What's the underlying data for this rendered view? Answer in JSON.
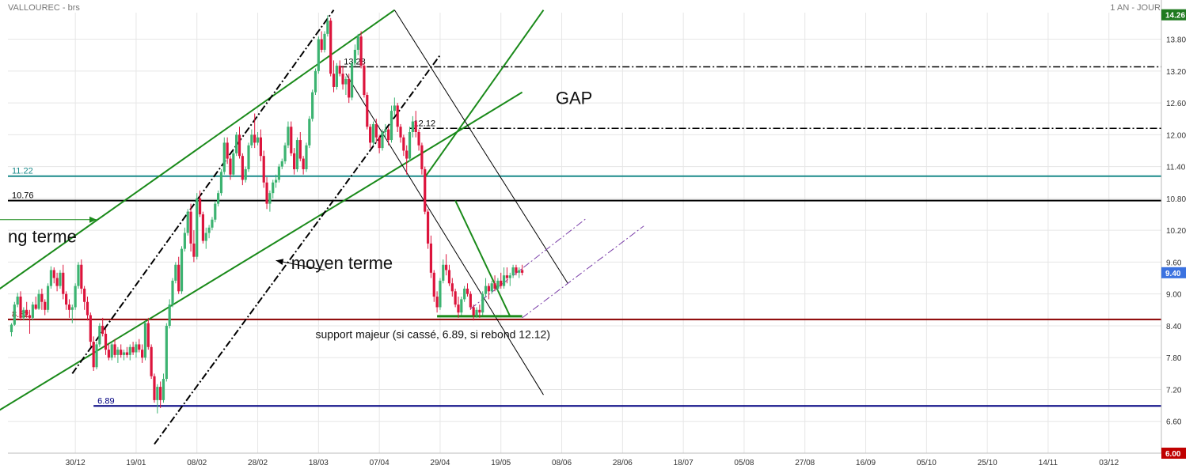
{
  "header": {
    "title": "VALLOUREC - brs",
    "period": "1 AN - JOUR"
  },
  "chart_data": {
    "type": "candlestick",
    "x_tick_labels": [
      "30/12",
      "19/01",
      "08/02",
      "28/02",
      "18/03",
      "07/04",
      "29/04",
      "19/05",
      "08/06",
      "28/06",
      "18/07",
      "05/08",
      "27/08",
      "16/09",
      "05/10",
      "25/10",
      "14/11",
      "03/12"
    ],
    "y_ticks": [
      6.6,
      7.2,
      7.8,
      8.4,
      9.0,
      9.6,
      10.2,
      10.8,
      11.4,
      12.0,
      12.6,
      13.2,
      13.8
    ],
    "y_tick_labels": [
      "6.60",
      "7.20",
      "7.80",
      "8.40",
      "9.00",
      "9.60",
      "10.20",
      "10.80",
      "11.40",
      "12.00",
      "12.60",
      "13.20",
      "13.80"
    ],
    "ylim": [
      6.0,
      14.3
    ],
    "last_price": {
      "value": 9.4,
      "label": "9.40",
      "color": "#3b72e0"
    },
    "axis_badges": [
      {
        "value": 6.0,
        "label": "6.00",
        "color": "#c00000"
      },
      {
        "value": 14.26,
        "label": "14.26",
        "color": "#1f7a1f"
      }
    ],
    "colors": {
      "up": "#3cb371",
      "down": "#dc143c",
      "trend": "#1a8a1a",
      "grid": "#e6e6e6"
    },
    "horizontal_levels": [
      {
        "value": 11.22,
        "label": "11.22",
        "color": "#1a8a8a",
        "style": "solid",
        "start_day": -10
      },
      {
        "value": 10.76,
        "label": "10.76",
        "color": "#000000",
        "style": "solid",
        "start_day": -10
      },
      {
        "value": 8.52,
        "label": "8.52",
        "color": "#8b0000",
        "style": "solid",
        "start_day": -10
      },
      {
        "value": 6.89,
        "label": "6.89",
        "color": "#000080",
        "style": "solid",
        "start_day": 27
      },
      {
        "value": 13.28,
        "label": "13.28",
        "color": "#000000",
        "style": "dashdot",
        "start_day": 108
      },
      {
        "value": 12.12,
        "label": "12.12",
        "color": "#000000",
        "style": "dashdot",
        "start_day": 131
      }
    ],
    "trend_lines": [
      {
        "from": [
          -10,
          8.85
        ],
        "to": [
          126,
          14.35
        ],
        "color": "#1a8a1a",
        "style": "solid",
        "width": 2
      },
      {
        "from": [
          -10,
          6.6
        ],
        "to": [
          168,
          12.8
        ],
        "color": "#1a8a1a",
        "style": "solid",
        "width": 2
      },
      {
        "from": [
          136,
          11.2
        ],
        "to": [
          175,
          14.35
        ],
        "color": "#1a8a1a",
        "style": "solid",
        "width": 2
      },
      {
        "from": [
          20,
          7.5
        ],
        "to": [
          106,
          14.35
        ],
        "color": "#000000",
        "style": "dashdot",
        "width": 2
      },
      {
        "from": [
          47,
          6.17
        ],
        "to": [
          141,
          13.5
        ],
        "color": "#000000",
        "style": "dashdot",
        "width": 2
      },
      {
        "from": [
          110,
          13.15
        ],
        "to": [
          175,
          7.1
        ],
        "color": "#000000",
        "style": "solid",
        "width": 1
      },
      {
        "from": [
          126,
          14.35
        ],
        "to": [
          183,
          9.2
        ],
        "color": "#000000",
        "style": "solid",
        "width": 1
      },
      {
        "from": [
          146,
          10.76
        ],
        "to": [
          164,
          8.58
        ],
        "color": "#1a8a1a",
        "style": "solid",
        "width": 2
      },
      {
        "from": [
          140,
          8.58
        ],
        "to": [
          168,
          8.58
        ],
        "color": "#1a8a1a",
        "style": "solid",
        "width": 3
      },
      {
        "from": [
          151,
          8.72
        ],
        "to": [
          189,
          10.42
        ],
        "color": "#7a3ea8",
        "style": "dashdot",
        "width": 1
      },
      {
        "from": [
          168,
          8.55
        ],
        "to": [
          208,
          10.28
        ],
        "color": "#7a3ea8",
        "style": "dashdot",
        "width": 1
      },
      {
        "from": [
          -10,
          10.4
        ],
        "to": [
          28,
          10.4
        ],
        "color": "#1a8a1a",
        "style": "solid",
        "width": 1
      },
      {
        "from": [
          103,
          9.45
        ],
        "to": [
          87,
          9.63
        ],
        "color": "#000000",
        "style": "solid",
        "width": 1
      }
    ],
    "annotations": [
      {
        "text": "ng terme",
        "day": -10,
        "value": 9.97,
        "size": 22
      },
      {
        "text": "moyen terme",
        "day": 92,
        "value": 9.47,
        "size": 22
      },
      {
        "text": "GAP",
        "day": 179,
        "value": 12.58,
        "size": 22
      },
      {
        "text": "support majeur (si cassé, 6.89, si rebond 12.12)",
        "day": 100,
        "value": 8.17,
        "size": 14
      }
    ],
    "candles": [
      [
        8.28,
        8.45,
        8.2,
        8.42
      ],
      [
        8.42,
        8.85,
        8.4,
        8.8
      ],
      [
        8.8,
        9.02,
        8.75,
        8.95
      ],
      [
        8.95,
        9.05,
        8.5,
        8.55
      ],
      [
        8.55,
        8.75,
        8.5,
        8.7
      ],
      [
        8.7,
        8.85,
        8.55,
        8.6
      ],
      [
        8.6,
        8.7,
        8.25,
        8.55
      ],
      [
        8.55,
        8.85,
        8.5,
        8.8
      ],
      [
        8.8,
        8.95,
        8.7,
        8.72
      ],
      [
        8.72,
        9.08,
        8.7,
        9.0
      ],
      [
        9.0,
        9.1,
        8.7,
        8.85
      ],
      [
        8.85,
        8.9,
        8.6,
        8.7
      ],
      [
        8.7,
        9.2,
        8.65,
        9.15
      ],
      [
        9.15,
        9.52,
        9.1,
        9.45
      ],
      [
        9.45,
        9.5,
        9.2,
        9.3
      ],
      [
        9.3,
        9.4,
        9.05,
        9.15
      ],
      [
        9.15,
        9.45,
        9.1,
        9.4
      ],
      [
        9.4,
        9.55,
        8.9,
        9.0
      ],
      [
        9.0,
        9.05,
        8.7,
        8.8
      ],
      [
        8.8,
        8.9,
        8.55,
        8.7
      ],
      [
        8.7,
        8.8,
        8.45,
        8.75
      ],
      [
        8.75,
        9.2,
        8.7,
        9.15
      ],
      [
        9.15,
        9.6,
        9.1,
        9.55
      ],
      [
        9.55,
        9.65,
        9.0,
        9.1
      ],
      [
        9.1,
        9.15,
        8.7,
        8.85
      ],
      [
        8.85,
        8.95,
        8.5,
        8.6
      ],
      [
        8.6,
        8.65,
        8.0,
        8.1
      ],
      [
        8.1,
        8.2,
        7.55,
        7.62
      ],
      [
        7.62,
        8.1,
        7.58,
        8.05
      ],
      [
        8.05,
        8.45,
        8.0,
        8.4
      ],
      [
        8.4,
        8.55,
        8.2,
        8.25
      ],
      [
        8.25,
        8.35,
        7.85,
        7.95
      ],
      [
        7.95,
        8.05,
        7.75,
        7.8
      ],
      [
        7.8,
        8.1,
        7.75,
        8.05
      ],
      [
        8.05,
        8.15,
        7.8,
        7.85
      ],
      [
        7.85,
        8.0,
        7.7,
        7.95
      ],
      [
        7.95,
        8.05,
        7.8,
        7.85
      ],
      [
        7.85,
        7.95,
        7.75,
        7.9
      ],
      [
        7.9,
        8.0,
        7.8,
        7.85
      ],
      [
        7.85,
        8.05,
        7.75,
        8.0
      ],
      [
        8.0,
        8.1,
        7.85,
        7.9
      ],
      [
        7.9,
        8.1,
        7.8,
        8.05
      ],
      [
        8.05,
        8.15,
        7.9,
        7.95
      ],
      [
        7.95,
        8.05,
        7.7,
        7.8
      ],
      [
        7.8,
        8.5,
        7.75,
        8.45
      ],
      [
        8.45,
        8.55,
        7.95,
        8.0
      ],
      [
        8.0,
        8.05,
        7.4,
        7.45
      ],
      [
        7.45,
        7.5,
        6.95,
        7.0
      ],
      [
        7.0,
        7.3,
        6.75,
        7.25
      ],
      [
        7.25,
        7.35,
        6.85,
        7.0
      ],
      [
        7.0,
        7.5,
        6.95,
        7.4
      ],
      [
        7.4,
        8.45,
        7.35,
        8.4
      ],
      [
        8.4,
        8.9,
        8.35,
        8.8
      ],
      [
        8.8,
        9.3,
        8.75,
        9.25
      ],
      [
        9.25,
        9.6,
        9.2,
        9.55
      ],
      [
        9.55,
        9.7,
        9.0,
        9.05
      ],
      [
        9.05,
        9.9,
        9.0,
        9.85
      ],
      [
        9.85,
        10.25,
        9.8,
        10.15
      ],
      [
        10.15,
        10.6,
        10.1,
        10.55
      ],
      [
        10.55,
        10.7,
        9.8,
        9.95
      ],
      [
        9.95,
        10.2,
        9.6,
        9.7
      ],
      [
        9.7,
        10.9,
        9.65,
        10.8
      ],
      [
        10.8,
        10.95,
        10.45,
        10.5
      ],
      [
        10.5,
        10.55,
        9.95,
        10.0
      ],
      [
        10.0,
        10.25,
        9.85,
        10.15
      ],
      [
        10.15,
        10.3,
        10.05,
        10.25
      ],
      [
        10.25,
        10.45,
        10.2,
        10.4
      ],
      [
        10.4,
        10.75,
        10.35,
        10.7
      ],
      [
        10.7,
        10.95,
        10.65,
        10.9
      ],
      [
        10.9,
        11.35,
        10.85,
        11.3
      ],
      [
        11.3,
        11.95,
        11.25,
        11.85
      ],
      [
        11.85,
        11.95,
        11.45,
        11.55
      ],
      [
        11.55,
        11.6,
        11.15,
        11.25
      ],
      [
        11.25,
        11.7,
        11.2,
        11.65
      ],
      [
        11.65,
        12.05,
        11.6,
        12.0
      ],
      [
        12.0,
        12.15,
        11.55,
        11.6
      ],
      [
        11.6,
        11.65,
        11.05,
        11.15
      ],
      [
        11.15,
        11.4,
        11.1,
        11.35
      ],
      [
        11.35,
        11.85,
        11.3,
        11.8
      ],
      [
        11.8,
        12.1,
        11.75,
        12.0
      ],
      [
        12.0,
        12.4,
        11.75,
        11.85
      ],
      [
        11.85,
        12.05,
        11.8,
        11.95
      ],
      [
        11.95,
        12.1,
        11.5,
        11.6
      ],
      [
        11.6,
        11.7,
        11.0,
        11.1
      ],
      [
        11.1,
        11.2,
        10.6,
        10.7
      ],
      [
        10.7,
        10.95,
        10.55,
        10.9
      ],
      [
        10.9,
        11.15,
        10.8,
        11.1
      ],
      [
        11.1,
        11.25,
        11.0,
        11.15
      ],
      [
        11.15,
        11.45,
        11.1,
        11.4
      ],
      [
        11.4,
        11.55,
        11.35,
        11.5
      ],
      [
        11.5,
        11.85,
        11.45,
        11.8
      ],
      [
        11.8,
        12.25,
        11.75,
        12.15
      ],
      [
        12.15,
        12.25,
        11.6,
        11.65
      ],
      [
        11.65,
        11.75,
        11.25,
        11.35
      ],
      [
        11.35,
        11.95,
        11.3,
        11.9
      ],
      [
        11.9,
        12.05,
        11.5,
        11.55
      ],
      [
        11.55,
        11.6,
        11.25,
        11.35
      ],
      [
        11.35,
        11.85,
        11.3,
        11.8
      ],
      [
        11.8,
        12.35,
        11.75,
        12.3
      ],
      [
        12.3,
        12.85,
        12.25,
        12.8
      ],
      [
        12.8,
        13.25,
        12.75,
        13.2
      ],
      [
        13.2,
        13.85,
        13.15,
        13.8
      ],
      [
        13.8,
        13.95,
        13.55,
        13.6
      ],
      [
        13.6,
        13.95,
        13.55,
        13.9
      ],
      [
        13.9,
        14.25,
        13.85,
        14.15
      ],
      [
        14.15,
        14.2,
        13.1,
        13.15
      ],
      [
        13.15,
        13.4,
        12.8,
        12.9
      ],
      [
        12.9,
        13.35,
        12.85,
        13.3
      ],
      [
        13.3,
        13.4,
        13.1,
        13.15
      ],
      [
        13.15,
        13.3,
        12.85,
        12.95
      ],
      [
        12.95,
        13.1,
        12.75,
        13.05
      ],
      [
        13.05,
        13.15,
        12.6,
        12.7
      ],
      [
        12.7,
        13.4,
        12.65,
        13.35
      ],
      [
        13.35,
        13.7,
        13.3,
        13.6
      ],
      [
        13.6,
        13.9,
        13.5,
        13.85
      ],
      [
        13.85,
        13.95,
        13.25,
        13.3
      ],
      [
        13.3,
        13.35,
        12.7,
        12.75
      ],
      [
        12.75,
        12.8,
        12.1,
        12.15
      ],
      [
        12.15,
        12.2,
        11.75,
        11.85
      ],
      [
        11.85,
        12.25,
        11.8,
        12.2
      ],
      [
        12.2,
        12.3,
        11.85,
        11.95
      ],
      [
        11.95,
        12.0,
        11.65,
        11.75
      ],
      [
        11.75,
        12.1,
        11.7,
        12.05
      ],
      [
        12.05,
        12.2,
        11.95,
        12.1
      ],
      [
        12.1,
        12.15,
        11.8,
        11.9
      ],
      [
        11.9,
        12.55,
        11.85,
        12.45
      ],
      [
        12.45,
        12.7,
        12.35,
        12.55
      ],
      [
        12.55,
        12.6,
        12.05,
        12.15
      ],
      [
        12.15,
        12.2,
        11.85,
        11.95
      ],
      [
        11.95,
        12.0,
        11.6,
        11.7
      ],
      [
        11.7,
        11.8,
        11.25,
        11.55
      ],
      [
        11.55,
        12.15,
        11.5,
        12.05
      ],
      [
        12.05,
        12.35,
        11.95,
        12.25
      ],
      [
        12.25,
        12.45,
        11.95,
        12.05
      ],
      [
        12.05,
        12.1,
        11.7,
        11.8
      ],
      [
        11.8,
        11.85,
        11.25,
        11.35
      ],
      [
        11.35,
        11.4,
        10.5,
        10.55
      ],
      [
        10.55,
        10.6,
        9.85,
        9.95
      ],
      [
        9.95,
        10.1,
        9.3,
        9.4
      ],
      [
        9.4,
        9.45,
        8.85,
        8.95
      ],
      [
        8.95,
        9.05,
        8.65,
        8.75
      ],
      [
        8.75,
        9.3,
        8.7,
        9.25
      ],
      [
        9.25,
        9.65,
        9.2,
        9.55
      ],
      [
        9.55,
        9.75,
        9.35,
        9.45
      ],
      [
        9.45,
        9.55,
        9.15,
        9.2
      ],
      [
        9.2,
        9.3,
        8.95,
        9.05
      ],
      [
        9.05,
        9.1,
        8.75,
        8.8
      ],
      [
        8.8,
        8.95,
        8.55,
        8.65
      ],
      [
        8.65,
        8.95,
        8.6,
        8.9
      ],
      [
        8.9,
        9.15,
        8.85,
        9.1
      ],
      [
        9.1,
        9.2,
        8.95,
        9.0
      ],
      [
        9.0,
        9.05,
        8.7,
        8.75
      ],
      [
        8.75,
        8.8,
        8.5,
        8.6
      ],
      [
        8.6,
        8.75,
        8.55,
        8.7
      ],
      [
        8.7,
        8.8,
        8.55,
        8.65
      ],
      [
        8.65,
        9.05,
        8.6,
        9.0
      ],
      [
        9.0,
        9.3,
        8.95,
        9.15
      ],
      [
        9.15,
        9.2,
        8.9,
        9.05
      ],
      [
        9.05,
        9.25,
        9.0,
        9.2
      ],
      [
        9.2,
        9.35,
        9.05,
        9.1
      ],
      [
        9.1,
        9.3,
        9.05,
        9.25
      ],
      [
        9.25,
        9.4,
        9.1,
        9.15
      ],
      [
        9.15,
        9.5,
        9.1,
        9.35
      ],
      [
        9.35,
        9.5,
        9.2,
        9.3
      ],
      [
        9.3,
        9.4,
        9.15,
        9.35
      ],
      [
        9.35,
        9.55,
        9.3,
        9.5
      ],
      [
        9.5,
        9.55,
        9.35,
        9.4
      ],
      [
        9.4,
        9.5,
        9.3,
        9.45
      ],
      [
        9.45,
        9.55,
        9.35,
        9.4
      ]
    ]
  }
}
